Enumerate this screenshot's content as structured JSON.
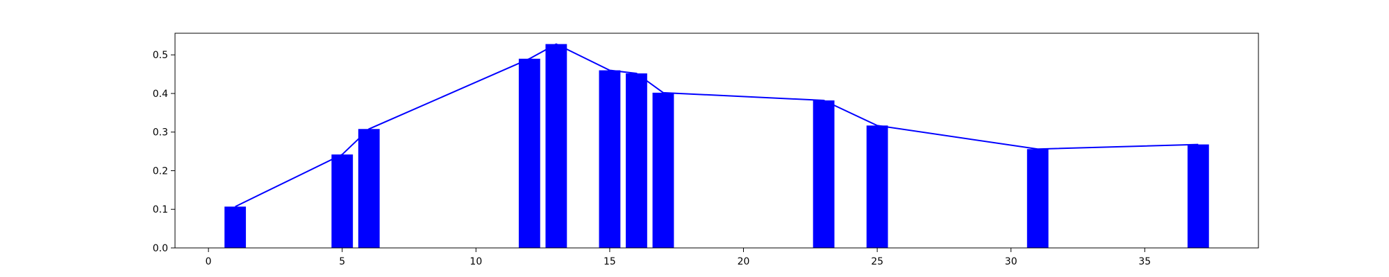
{
  "chart_data": {
    "type": "bar",
    "title": "",
    "xlabel": "",
    "ylabel": "",
    "xlim": [
      -1.25,
      39.25
    ],
    "ylim": [
      0,
      0.556
    ],
    "grid": false,
    "legend": "none",
    "x_ticks": [
      0,
      5,
      10,
      15,
      20,
      25,
      30,
      35
    ],
    "x_tick_labels": [
      "0",
      "5",
      "10",
      "15",
      "20",
      "25",
      "30",
      "35"
    ],
    "y_ticks": [
      0.0,
      0.1,
      0.2,
      0.3,
      0.4,
      0.5
    ],
    "y_tick_labels": [
      "0.0",
      "0.1",
      "0.2",
      "0.3",
      "0.4",
      "0.5"
    ],
    "x": [
      1,
      5,
      6,
      12,
      13,
      15,
      16,
      17,
      23,
      25,
      31,
      37
    ],
    "values": [
      0.107,
      0.242,
      0.308,
      0.49,
      0.528,
      0.46,
      0.452,
      0.402,
      0.382,
      0.317,
      0.256,
      0.268
    ],
    "bar_color": "#0000ff",
    "line_color": "#0000ff",
    "series": [
      {
        "type": "bar",
        "values": [
          0.107,
          0.242,
          0.308,
          0.49,
          0.528,
          0.46,
          0.452,
          0.402,
          0.382,
          0.317,
          0.256,
          0.268
        ]
      },
      {
        "type": "line",
        "values": [
          0.107,
          0.242,
          0.308,
          0.49,
          0.528,
          0.46,
          0.452,
          0.402,
          0.382,
          0.317,
          0.256,
          0.268
        ]
      }
    ]
  }
}
